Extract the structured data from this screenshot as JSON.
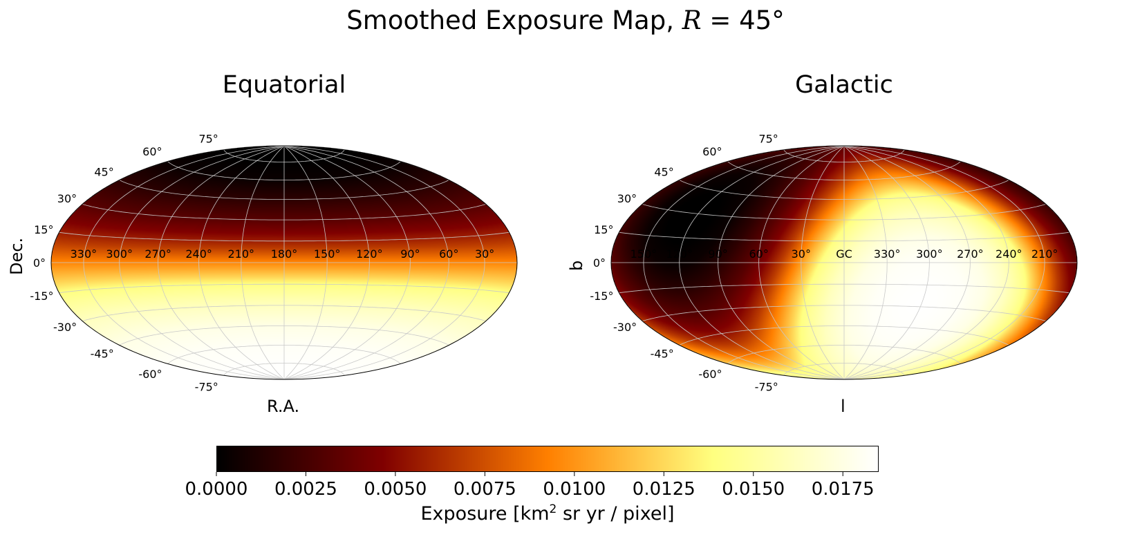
{
  "title": {
    "prefix": "Smoothed Exposure Map, ",
    "var": "R",
    "suffix": " = 45°"
  },
  "colors": {
    "colormap": "afmhot",
    "grid": "#c8c8c8",
    "outline": "#000000"
  },
  "chart_data": {
    "type": "heatmap",
    "projection": "hammer",
    "exposure_vs_declination": {
      "dec": [
        -90,
        -75,
        -60,
        -45,
        -30,
        -20,
        -15,
        -10,
        0,
        10,
        15,
        20,
        30,
        45,
        60,
        75,
        90
      ],
      "exposure": [
        0.0185,
        0.0184,
        0.0182,
        0.0176,
        0.0162,
        0.0148,
        0.014,
        0.0124,
        0.0095,
        0.0068,
        0.0057,
        0.0047,
        0.0032,
        0.0016,
        0.0004,
        0.0,
        0.0
      ]
    },
    "panels": [
      {
        "name": "equatorial",
        "title": "Equatorial",
        "xlabel": "R.A.",
        "ylabel": "Dec.",
        "lon_ticks": [
          {
            "lon": 330,
            "label": "330°"
          },
          {
            "lon": 300,
            "label": "300°"
          },
          {
            "lon": 270,
            "label": "270°"
          },
          {
            "lon": 240,
            "label": "240°"
          },
          {
            "lon": 210,
            "label": "210°"
          },
          {
            "lon": 180,
            "label": "180°"
          },
          {
            "lon": 150,
            "label": "150°"
          },
          {
            "lon": 120,
            "label": "120°"
          },
          {
            "lon": 90,
            "label": "90°"
          },
          {
            "lon": 60,
            "label": "60°"
          },
          {
            "lon": 30,
            "label": "30°"
          }
        ]
      },
      {
        "name": "galactic",
        "title": "Galactic",
        "xlabel": "l",
        "ylabel": "b",
        "lon_ticks": [
          {
            "lon": 150,
            "label": "150°"
          },
          {
            "lon": 120,
            "label": "120°"
          },
          {
            "lon": 90,
            "label": "90°"
          },
          {
            "lon": 60,
            "label": "60°"
          },
          {
            "lon": 30,
            "label": "30°"
          },
          {
            "lon": 0,
            "label": "GC"
          },
          {
            "lon": 330,
            "label": "330°"
          },
          {
            "lon": 300,
            "label": "300°"
          },
          {
            "lon": 270,
            "label": "270°"
          },
          {
            "lon": 240,
            "label": "240°"
          },
          {
            "lon": 210,
            "label": "210°"
          }
        ]
      }
    ],
    "lat_ticks": [
      {
        "lat": 75,
        "label": "75°"
      },
      {
        "lat": 60,
        "label": "60°"
      },
      {
        "lat": 45,
        "label": "45°"
      },
      {
        "lat": 30,
        "label": "30°"
      },
      {
        "lat": 15,
        "label": "15°"
      },
      {
        "lat": 0,
        "label": "0°"
      },
      {
        "lat": -15,
        "label": "-15°"
      },
      {
        "lat": -30,
        "label": "-30°"
      },
      {
        "lat": -45,
        "label": "-45°"
      },
      {
        "lat": -60,
        "label": "-60°"
      },
      {
        "lat": -75,
        "label": "-75°"
      }
    ],
    "colorbar": {
      "range": [
        0.0,
        0.0185
      ],
      "ticks": [
        0.0,
        0.0025,
        0.005,
        0.0075,
        0.01,
        0.0125,
        0.015,
        0.0175
      ],
      "tick_labels": [
        "0.0000",
        "0.0025",
        "0.0050",
        "0.0075",
        "0.0100",
        "0.0125",
        "0.0150",
        "0.0175"
      ],
      "label_prefix": "Exposure [km",
      "label_sup": "2",
      "label_suffix": " sr yr / pixel]"
    }
  }
}
